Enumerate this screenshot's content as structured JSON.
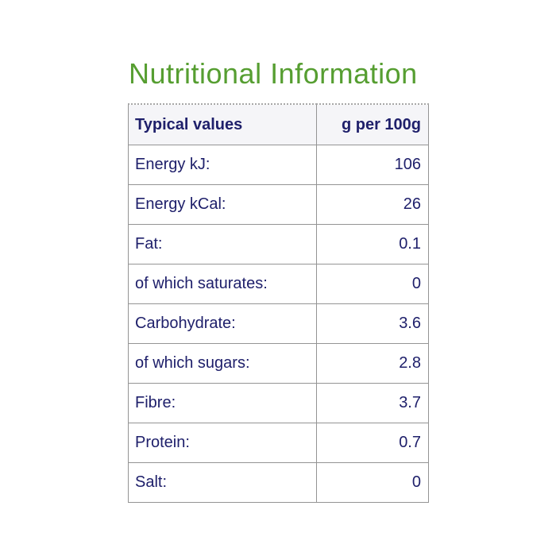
{
  "title": "Nutritional Information",
  "colors": {
    "title_green": "#569e31",
    "text_navy": "#1f206b",
    "border_gray": "#8f8f8f",
    "header_background": "#f5f5f8"
  },
  "chart_data": {
    "type": "table",
    "columns": [
      "Typical values",
      "g per 100g"
    ],
    "rows": [
      {
        "label": "Energy kJ:",
        "value": "106"
      },
      {
        "label": "Energy kCal:",
        "value": "26"
      },
      {
        "label": "Fat:",
        "value": "0.1"
      },
      {
        "label": "of which saturates:",
        "value": "0"
      },
      {
        "label": "Carbohydrate:",
        "value": "3.6"
      },
      {
        "label": "of which sugars:",
        "value": "2.8"
      },
      {
        "label": "Fibre:",
        "value": "3.7"
      },
      {
        "label": "Protein:",
        "value": "0.7"
      },
      {
        "label": "Salt:",
        "value": "0"
      }
    ]
  }
}
